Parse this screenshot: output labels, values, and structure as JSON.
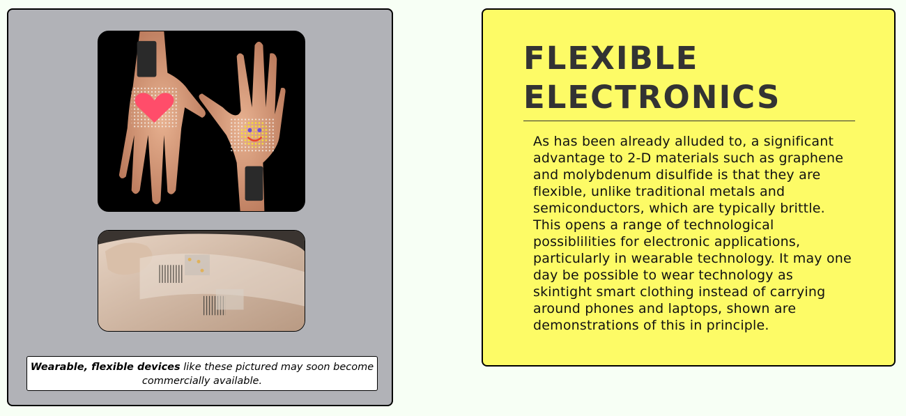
{
  "left_panel": {
    "caption_bold": "Wearable, flexible devices",
    "caption_rest": " like these pictured may soon become commercially available."
  },
  "right_panel": {
    "title_line1": "FLEXIBLE",
    "title_line2": "ELECTRONICS",
    "body": "As has been already alluded to, a significant advantage to 2-D materials such as graphene and molybdenum disulfide is that they are flexible, unlike traditional metals and semiconductors, which are typically brittle. This opens a range of technological possiblilities for electronic applications, particularly in wearable technology. It may one day be possible to wear technology as skintight smart clothing instead of carrying around phones and laptops, shown are demonstrations of this in principle."
  },
  "colors": {
    "page_bg": "#f7fff5",
    "left_panel_bg": "#b1b2b7",
    "right_panel_bg": "#fdfb66",
    "title_color": "#333333"
  }
}
